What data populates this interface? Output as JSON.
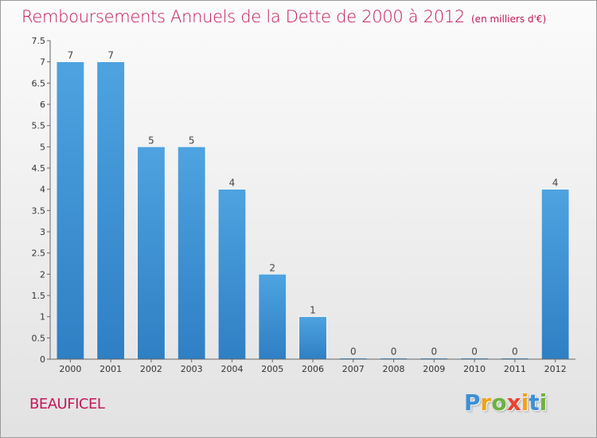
{
  "chart_data": {
    "type": "bar",
    "title": "Remboursements Annuels de la Dette de 2000 à 2012",
    "unit_label": "(en milliers d'€)",
    "categories": [
      "2000",
      "2001",
      "2002",
      "2003",
      "2004",
      "2005",
      "2006",
      "2007",
      "2008",
      "2009",
      "2010",
      "2011",
      "2012"
    ],
    "values": [
      7,
      7,
      5,
      5,
      4,
      2,
      1,
      0,
      0,
      0,
      0,
      0,
      4
    ],
    "data_labels": [
      "7",
      "7",
      "5",
      "5",
      "4",
      "2",
      "1",
      "0",
      "0",
      "0",
      "0",
      "0",
      "4"
    ],
    "ylim": [
      0,
      7.5
    ],
    "yticks": [
      0,
      0.5,
      1,
      1.5,
      2,
      2.5,
      3,
      3.5,
      4,
      4.5,
      5,
      5.5,
      6,
      6.5,
      7,
      7.5
    ],
    "ytick_labels": [
      "0",
      "0.5",
      "1",
      "1.5",
      "2",
      "2.5",
      "3",
      "3.5",
      "4",
      "4.5",
      "5",
      "5.5",
      "6",
      "6.5",
      "7",
      "7.5"
    ],
    "xlabel": "",
    "ylabel": "",
    "grid": false,
    "bar_color": "#4ea3e0",
    "bar_color_dark": "#2f7fc4"
  },
  "commune": "BEAUFICEL",
  "logo": {
    "letters": [
      "P",
      "r",
      "o",
      "x",
      "i",
      "t",
      "i"
    ],
    "colors": [
      "#3d8fd6",
      "#f0a21c",
      "#6cb33f",
      "#e8432f",
      "#f0a21c",
      "#3d8fd6",
      "#6cb33f"
    ]
  }
}
